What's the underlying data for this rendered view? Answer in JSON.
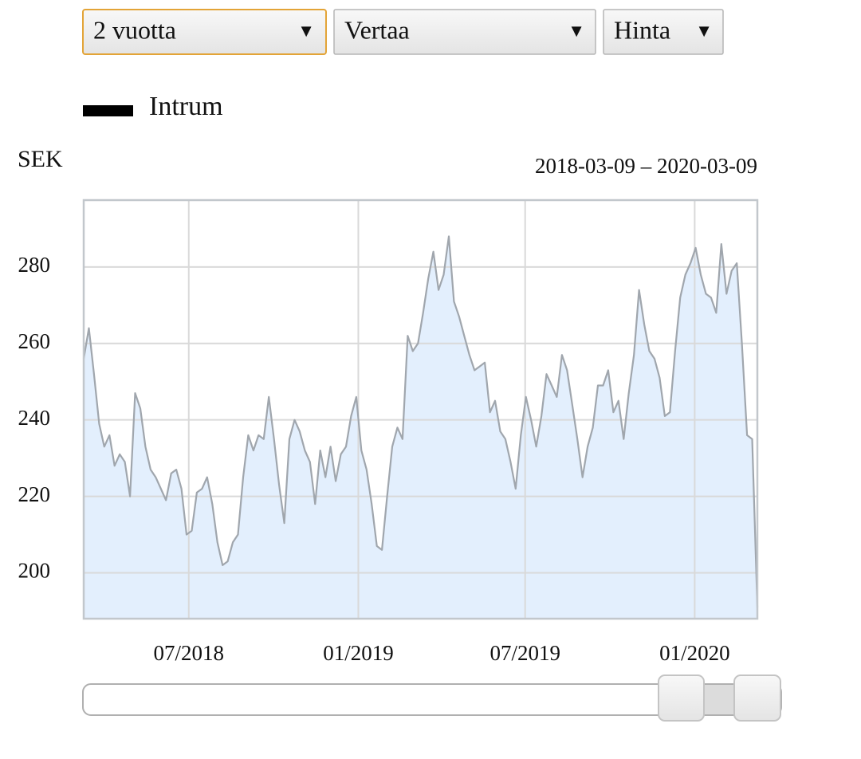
{
  "controls": {
    "period": "2 vuotta",
    "compare": "Vertaa",
    "measure": "Hinta"
  },
  "chart_data": {
    "type": "line",
    "y_label": "SEK",
    "subtitle": "2018-03-09 – 2020-03-09",
    "xlim": [
      "2018-03-09",
      "2020-03-09"
    ],
    "xticks": [
      {
        "value": "2018-07-01",
        "label": "07/2018"
      },
      {
        "value": "2019-01-01",
        "label": "01/2019"
      },
      {
        "value": "2019-07-01",
        "label": "07/2019"
      },
      {
        "value": "2020-01-01",
        "label": "01/2020"
      }
    ],
    "ylim": [
      188,
      297.5
    ],
    "yticks": [
      200,
      220,
      240,
      260,
      280
    ],
    "grid": true,
    "line_color": "#a0a6ad",
    "fill_color": "#e3effd",
    "series": [
      {
        "name": "Intrum",
        "color": "#000000",
        "values": [
          256,
          264,
          252,
          239,
          233,
          236,
          228,
          231,
          229,
          220,
          247,
          243,
          233,
          227,
          225,
          222,
          219,
          226,
          227,
          222,
          210,
          211,
          221,
          222,
          225,
          218,
          208,
          202,
          203,
          208,
          210,
          225,
          236,
          232,
          236,
          235,
          246,
          235,
          223,
          213,
          235,
          240,
          237,
          232,
          229,
          218,
          232,
          225,
          233,
          224,
          231,
          233,
          241,
          246,
          232,
          227,
          218,
          207,
          206,
          220,
          233,
          238,
          235,
          262,
          258,
          260,
          268,
          277,
          284,
          274,
          278,
          288,
          271,
          267,
          262,
          257,
          253,
          254,
          255,
          242,
          245,
          237,
          235,
          229,
          222,
          236,
          246,
          240,
          233,
          241,
          252,
          249,
          246,
          257,
          253,
          244,
          235,
          225,
          233,
          238,
          249,
          249,
          253,
          242,
          245,
          235,
          247,
          257,
          274,
          265,
          258,
          256,
          251,
          241,
          242,
          258,
          272,
          278,
          281,
          285,
          278,
          273,
          272,
          268,
          286,
          273,
          279,
          281,
          260,
          236,
          235,
          191
        ]
      }
    ]
  }
}
